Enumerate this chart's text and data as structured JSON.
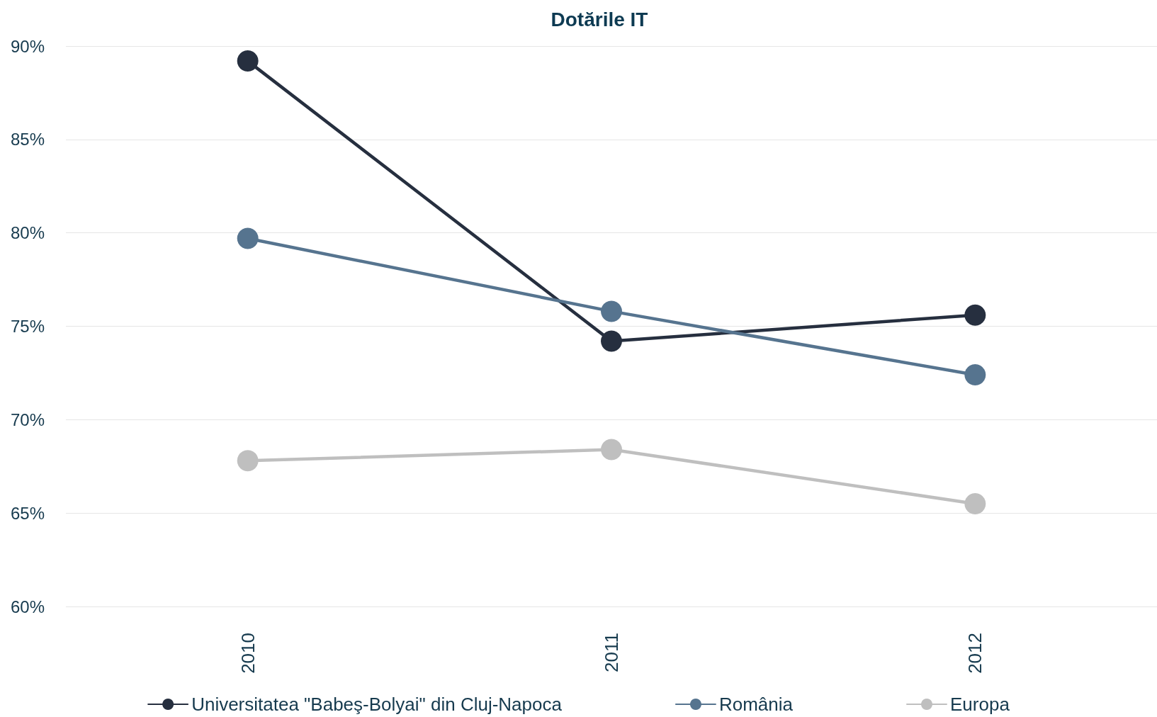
{
  "chart_data": {
    "type": "line",
    "title": "Dotările IT",
    "categories": [
      "2010",
      "2011",
      "2012"
    ],
    "series": [
      {
        "name": "Universitatea \"Babeş-Bolyai\" din Cluj-Napoca",
        "color": "#262f3f",
        "values": [
          89.2,
          74.2,
          75.6
        ]
      },
      {
        "name": "România",
        "color": "#56748f",
        "values": [
          79.7,
          75.8,
          72.4
        ]
      },
      {
        "name": "Europa",
        "color": "#bfbfbf",
        "values": [
          67.8,
          68.4,
          65.5
        ]
      }
    ],
    "ylim": [
      60,
      90
    ],
    "yticks": [
      {
        "value": 60,
        "label": "60%"
      },
      {
        "value": 65,
        "label": "65%"
      },
      {
        "value": 70,
        "label": "70%"
      },
      {
        "value": 75,
        "label": "75%"
      },
      {
        "value": 80,
        "label": "80%"
      },
      {
        "value": 85,
        "label": "85%"
      },
      {
        "value": 90,
        "label": "90%"
      }
    ],
    "grid": "y",
    "legend": "bottom",
    "marker": "circle",
    "line_style": "solid"
  }
}
